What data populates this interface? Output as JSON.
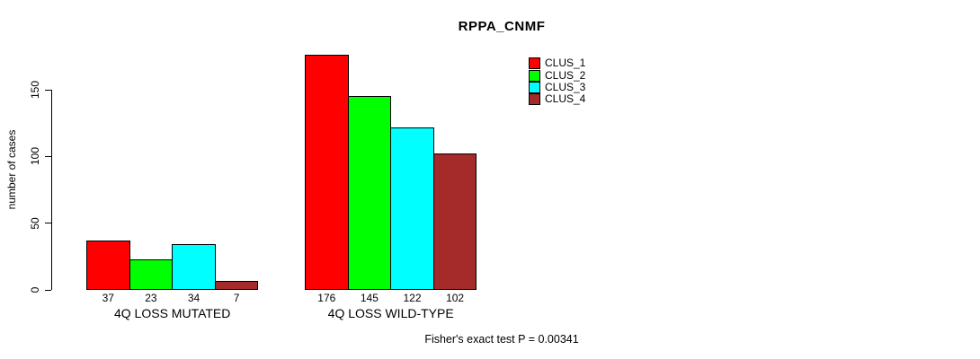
{
  "chart_data": {
    "type": "bar",
    "title": "RPPA_CNMF",
    "ylabel": "number of cases",
    "xlabel": "",
    "categories": [
      "4Q LOSS MUTATED",
      "4Q LOSS WILD-TYPE"
    ],
    "series": [
      {
        "name": "CLUS_1",
        "color": "#ff0000",
        "values": [
          37,
          176
        ]
      },
      {
        "name": "CLUS_2",
        "color": "#00ff00",
        "values": [
          23,
          145
        ]
      },
      {
        "name": "CLUS_3",
        "color": "#00ffff",
        "values": [
          34,
          122
        ]
      },
      {
        "name": "CLUS_4",
        "color": "#a52a2a",
        "values": [
          7,
          102
        ]
      }
    ],
    "yticks": [
      0,
      50,
      100,
      150
    ],
    "ylim": [
      0,
      185
    ],
    "grid": false,
    "legend_position": "top-right",
    "annotation": "Fisher's exact test P = 0.00341",
    "bar_outline_color": "#000000",
    "background_color": "#ffffff"
  }
}
